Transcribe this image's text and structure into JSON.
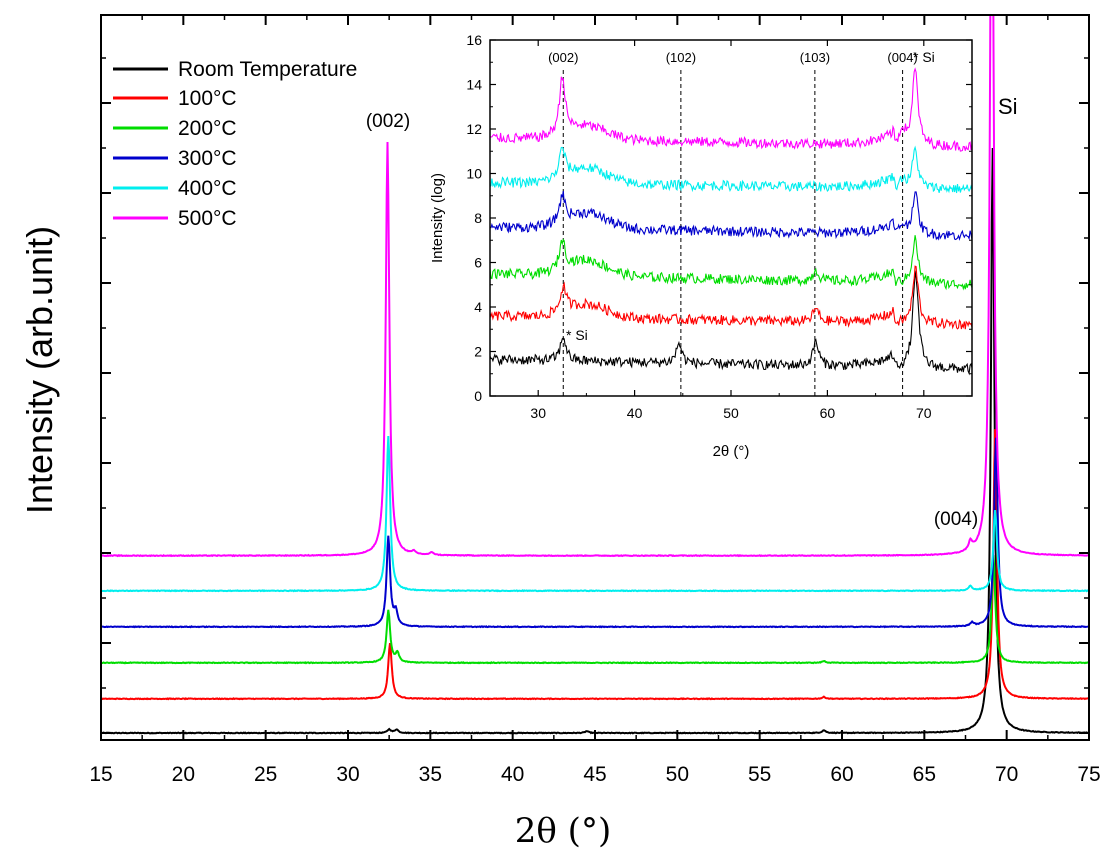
{
  "chart_data": [
    {
      "id": "main",
      "type": "line",
      "xlabel": "2θ (°)",
      "ylabel": "Intensity (arb.unit)",
      "xlim": [
        15,
        75
      ],
      "xticks": [
        15,
        20,
        25,
        30,
        35,
        40,
        45,
        50,
        55,
        60,
        65,
        70,
        75
      ],
      "yticks_labeled": false,
      "legend": {
        "placement": "top-left"
      },
      "annotations": [
        {
          "text": "(002)",
          "x": 32.4
        },
        {
          "text": "(004)",
          "x": 67.7
        },
        {
          "text": "Si",
          "x": 70.2
        }
      ],
      "series": [
        {
          "name": "Room Temperature",
          "color": "#000000",
          "baseline": 0.0,
          "peaks": [
            {
              "x": 32.5,
              "h": 0.04
            },
            {
              "x": 32.95,
              "h": 0.04
            },
            {
              "x": 44.5,
              "h": 0.02
            },
            {
              "x": 58.9,
              "h": 0.03
            },
            {
              "x": 69.15,
              "h": 6.5
            }
          ]
        },
        {
          "name": "100°C",
          "color": "#ff0000",
          "baseline": 0.38,
          "peaks": [
            {
              "x": 32.55,
              "h": 0.62
            },
            {
              "x": 58.9,
              "h": 0.02
            },
            {
              "x": 69.3,
              "h": 3.0
            }
          ]
        },
        {
          "name": "200°C",
          "color": "#00dd00",
          "baseline": 0.78,
          "peaks": [
            {
              "x": 32.45,
              "h": 0.58
            },
            {
              "x": 33.0,
              "h": 0.1
            },
            {
              "x": 58.9,
              "h": 0.02
            },
            {
              "x": 69.2,
              "h": 1.2
            }
          ]
        },
        {
          "name": "300°C",
          "color": "#0000cc",
          "baseline": 1.18,
          "peaks": [
            {
              "x": 32.45,
              "h": 1.0
            },
            {
              "x": 32.9,
              "h": 0.15
            },
            {
              "x": 67.9,
              "h": 0.04
            },
            {
              "x": 69.35,
              "h": 2.1
            }
          ]
        },
        {
          "name": "400°C",
          "color": "#00eeee",
          "baseline": 1.58,
          "peaks": [
            {
              "x": 32.45,
              "h": 1.72
            },
            {
              "x": 67.8,
              "h": 0.05
            },
            {
              "x": 69.3,
              "h": 0.9
            }
          ]
        },
        {
          "name": "500°C",
          "color": "#ff00ff",
          "baseline": 1.97,
          "peaks": [
            {
              "x": 32.4,
              "h": 4.6
            },
            {
              "x": 34.0,
              "h": 0.03
            },
            {
              "x": 35.1,
              "h": 0.03
            },
            {
              "x": 67.8,
              "h": 0.1
            },
            {
              "x": 69.1,
              "h": 9.0
            }
          ]
        }
      ]
    },
    {
      "id": "inset",
      "type": "line",
      "xlabel": "2θ (°)",
      "ylabel": "Intensity (log)",
      "xlim": [
        25,
        75
      ],
      "ylim": [
        0,
        16
      ],
      "xticks": [
        30,
        40,
        50,
        60,
        70
      ],
      "yticks": [
        0,
        2,
        4,
        6,
        8,
        10,
        12,
        14,
        16
      ],
      "reference_lines": [
        {
          "x": 32.6,
          "label": "(002)"
        },
        {
          "x": 44.8,
          "label": "(102)"
        },
        {
          "x": 58.7,
          "label": "(103)"
        },
        {
          "x": 67.8,
          "label": "(004)"
        }
      ],
      "annotations": [
        {
          "text": "* Si",
          "x": 69.2,
          "y": 15.5
        },
        {
          "text": "* Si",
          "x": 32.9,
          "y": 2.8
        }
      ],
      "series": [
        {
          "name": "Room Temperature",
          "color": "#000000",
          "baseline": 1.65,
          "end": 1.2,
          "bump": 0.0,
          "peaks": [
            {
              "x": 32.6,
              "h": 1.1
            },
            {
              "x": 44.6,
              "h": 0.9
            },
            {
              "x": 58.8,
              "h": 1.1
            },
            {
              "x": 69.15,
              "h": 4.3
            }
          ]
        },
        {
          "name": "100°C",
          "color": "#ff0000",
          "baseline": 3.6,
          "end": 3.2,
          "bump": 0.6,
          "peaks": [
            {
              "x": 32.6,
              "h": 1.1
            },
            {
              "x": 58.8,
              "h": 0.6
            },
            {
              "x": 69.15,
              "h": 2.5
            }
          ]
        },
        {
          "name": "200°C",
          "color": "#00dd00",
          "baseline": 5.5,
          "end": 5.0,
          "bump": 0.7,
          "peaks": [
            {
              "x": 32.5,
              "h": 1.3
            },
            {
              "x": 58.8,
              "h": 0.5
            },
            {
              "x": 69.1,
              "h": 2.0
            }
          ]
        },
        {
          "name": "300°C",
          "color": "#0000cc",
          "baseline": 7.6,
          "end": 7.2,
          "bump": 0.7,
          "peaks": [
            {
              "x": 32.5,
              "h": 1.2
            },
            {
              "x": 67.8,
              "h": 0.4
            },
            {
              "x": 69.1,
              "h": 1.9
            }
          ]
        },
        {
          "name": "400°C",
          "color": "#00eeee",
          "baseline": 9.6,
          "end": 9.3,
          "bump": 0.7,
          "peaks": [
            {
              "x": 32.5,
              "h": 1.3
            },
            {
              "x": 67.8,
              "h": 0.4
            },
            {
              "x": 69.1,
              "h": 1.7
            }
          ]
        },
        {
          "name": "500°C",
          "color": "#ff00ff",
          "baseline": 11.6,
          "end": 11.2,
          "bump": 0.6,
          "peaks": [
            {
              "x": 32.5,
              "h": 2.6
            },
            {
              "x": 67.8,
              "h": 0.7
            },
            {
              "x": 69.1,
              "h": 3.4
            }
          ]
        }
      ]
    }
  ]
}
